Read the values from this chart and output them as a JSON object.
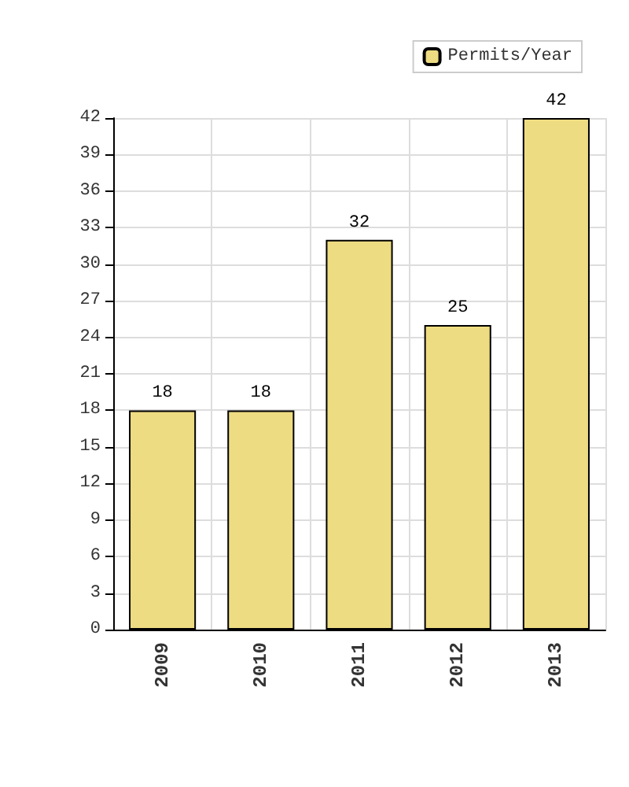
{
  "chart_data": {
    "type": "bar",
    "categories": [
      "2009",
      "2010",
      "2011",
      "2012",
      "2013"
    ],
    "series": [
      {
        "name": "Permits/Year",
        "color": "#eedc82",
        "values": [
          18,
          18,
          32,
          25,
          42
        ]
      }
    ],
    "ylim": [
      0,
      42
    ],
    "yticks": [
      0,
      3,
      6,
      9,
      12,
      15,
      18,
      21,
      24,
      27,
      30,
      33,
      36,
      39,
      42
    ],
    "grid": true,
    "legend": "top right",
    "data_labels": true
  }
}
